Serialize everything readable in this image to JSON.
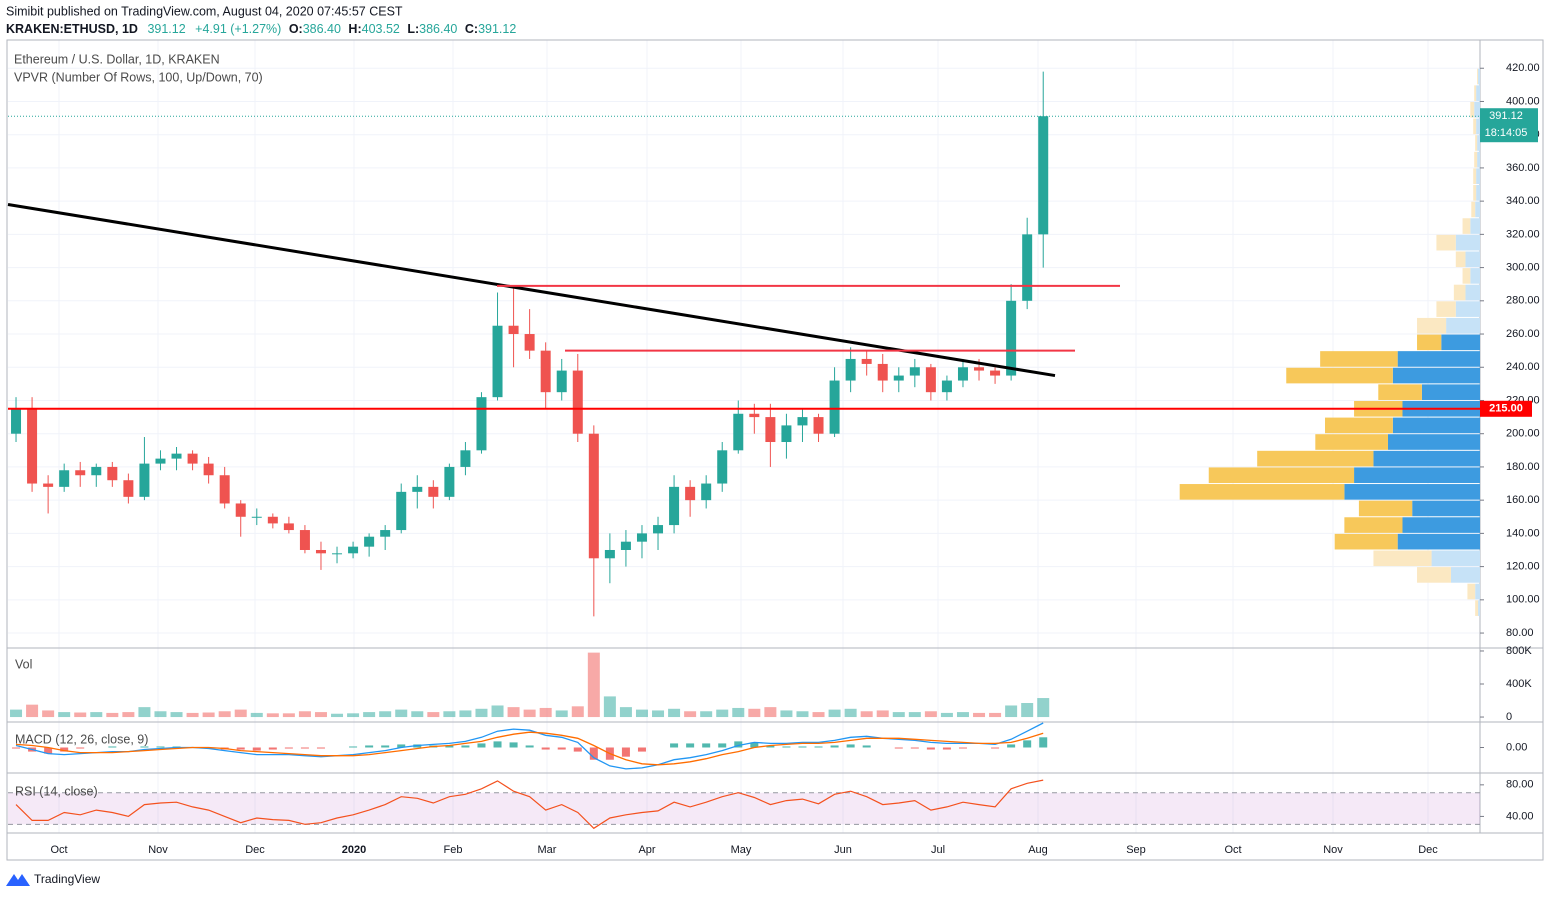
{
  "header": {
    "publisher": "Simibit published on TradingView.com, August 04, 2020 07:45:57 CEST",
    "symbol": "KRAKEN:ETHUSD, 1D",
    "last": "391.12",
    "change": "+4.91 (+1.27%)",
    "ohlc": [
      {
        "key": "O:",
        "value": "386.40"
      },
      {
        "key": "H:",
        "value": "403.52"
      },
      {
        "key": "L:",
        "value": "386.40"
      },
      {
        "key": "C:",
        "value": "391.12"
      }
    ]
  },
  "chart_data": [
    {
      "type": "candlestick",
      "title": "Ethereum / U.S. Dollar, 1D, KRAKEN",
      "indicator": "VPVR (Number Of Rows, 100, Up/Down, 70)",
      "x_labels": [
        "Oct",
        "Nov",
        "Dec",
        "2020",
        "Feb",
        "Mar",
        "Apr",
        "May",
        "Jun",
        "Jul",
        "Aug",
        "Sep",
        "Oct",
        "Nov",
        "Dec"
      ],
      "open": [
        200,
        215,
        170,
        168,
        178,
        175,
        180,
        172,
        162,
        182,
        185,
        188,
        182,
        175,
        158,
        150,
        150,
        146,
        142,
        130,
        128,
        128,
        132,
        138,
        142,
        165,
        168,
        162,
        180,
        190,
        222,
        265,
        260,
        250,
        225,
        238,
        200,
        125,
        130,
        135,
        140,
        145,
        168,
        160,
        170,
        190,
        212,
        210,
        195,
        205,
        210,
        200,
        232,
        245,
        242,
        232,
        235,
        240,
        225,
        232,
        240,
        238,
        235,
        280,
        320
      ],
      "high": [
        222,
        222,
        175,
        182,
        183,
        182,
        183,
        176,
        198,
        190,
        192,
        190,
        186,
        180,
        160,
        155,
        152,
        150,
        145,
        135,
        132,
        135,
        140,
        145,
        170,
        175,
        172,
        182,
        195,
        225,
        285,
        288,
        275,
        255,
        245,
        248,
        205,
        140,
        142,
        145,
        150,
        175,
        172,
        175,
        195,
        220,
        218,
        218,
        212,
        215,
        212,
        240,
        252,
        250,
        248,
        240,
        245,
        242,
        235,
        245,
        245,
        240,
        290,
        330,
        418
      ],
      "low": [
        195,
        165,
        152,
        165,
        168,
        168,
        168,
        158,
        160,
        178,
        178,
        178,
        170,
        155,
        138,
        145,
        143,
        140,
        128,
        118,
        122,
        125,
        126,
        130,
        140,
        155,
        155,
        160,
        175,
        188,
        220,
        240,
        245,
        215,
        220,
        195,
        90,
        110,
        120,
        125,
        130,
        140,
        150,
        155,
        165,
        188,
        200,
        180,
        185,
        195,
        195,
        198,
        225,
        235,
        225,
        225,
        228,
        220,
        220,
        228,
        232,
        230,
        232,
        275,
        300
      ],
      "close": [
        215,
        170,
        168,
        178,
        175,
        180,
        172,
        162,
        182,
        185,
        188,
        182,
        175,
        158,
        150,
        150,
        146,
        142,
        130,
        128,
        128,
        132,
        138,
        142,
        165,
        168,
        162,
        180,
        190,
        222,
        265,
        260,
        250,
        225,
        238,
        200,
        125,
        130,
        135,
        140,
        145,
        168,
        160,
        170,
        190,
        212,
        210,
        195,
        205,
        210,
        200,
        232,
        245,
        242,
        232,
        235,
        240,
        225,
        232,
        240,
        238,
        235,
        280,
        320,
        391.12
      ],
      "up_color": "#26a69a",
      "down_color": "#ef5350",
      "ylim": [
        71,
        437
      ],
      "yticks": [
        {
          "value": 80,
          "label": "80.00"
        },
        {
          "value": 100,
          "label": "100.00"
        },
        {
          "value": 120,
          "label": "120.00"
        },
        {
          "value": 140,
          "label": "140.00"
        },
        {
          "value": 160,
          "label": "160.00"
        },
        {
          "value": 180,
          "label": "180.00"
        },
        {
          "value": 200,
          "label": "200.00"
        },
        {
          "value": 220,
          "label": "220.00"
        },
        {
          "value": 240,
          "label": "240.00"
        },
        {
          "value": 260,
          "label": "260.00"
        },
        {
          "value": 280,
          "label": "280.00"
        },
        {
          "value": 300,
          "label": "300.00"
        },
        {
          "value": 320,
          "label": "320.00"
        },
        {
          "value": 340,
          "label": "340.00"
        },
        {
          "value": 360,
          "label": "360.00"
        },
        {
          "value": 380,
          "label": "380.00"
        },
        {
          "value": 400,
          "label": "400.00"
        },
        {
          "value": 420,
          "label": "420.00"
        }
      ],
      "grid": true,
      "countdown": "18:14:05",
      "trendline": {
        "values": [
          338,
          235
        ],
        "color": "#000000"
      },
      "hlines": [
        {
          "value": 289,
          "color": "#f23645"
        },
        {
          "value": 250,
          "color": "#f23645"
        },
        {
          "value": 215,
          "label": "215.00",
          "color": "#ff0000"
        }
      ],
      "volume_profile": {
        "prices": [
          95,
          105,
          115,
          125,
          135,
          145,
          155,
          165,
          175,
          185,
          195,
          205,
          215,
          225,
          235,
          245,
          255,
          265,
          275,
          285,
          295,
          305,
          315,
          325,
          335,
          345,
          355,
          365,
          375,
          385,
          395,
          405,
          415
        ],
        "up": [
          2,
          5,
          30,
          50,
          85,
          80,
          70,
          140,
          130,
          110,
          95,
          90,
          80,
          60,
          90,
          85,
          40,
          35,
          25,
          15,
          10,
          15,
          25,
          10,
          5,
          4,
          4,
          3,
          3,
          4,
          6,
          4,
          2
        ],
        "down": [
          3,
          8,
          35,
          60,
          65,
          60,
          55,
          170,
          150,
          120,
          75,
          70,
          50,
          45,
          110,
          80,
          25,
          30,
          20,
          12,
          8,
          10,
          20,
          8,
          4,
          3,
          3,
          3,
          2,
          3,
          4,
          2,
          1
        ],
        "xlim": [
          0,
          320
        ],
        "value_area": [
          130,
          260
        ],
        "up_color": "#3d9be0",
        "down_color": "#f7c85a",
        "up_color_outside": "#c6e2f7",
        "down_color_outside": "#fbe8c2"
      }
    },
    {
      "type": "bar",
      "title": "Vol",
      "values": [
        90000,
        150000,
        80000,
        60000,
        55000,
        60000,
        50000,
        60000,
        120000,
        70000,
        60000,
        50000,
        55000,
        70000,
        90000,
        50000,
        45000,
        45000,
        70000,
        60000,
        40000,
        45000,
        60000,
        70000,
        90000,
        70000,
        60000,
        70000,
        80000,
        100000,
        140000,
        120000,
        90000,
        110000,
        80000,
        130000,
        780000,
        250000,
        120000,
        90000,
        80000,
        100000,
        70000,
        70000,
        90000,
        110000,
        100000,
        120000,
        80000,
        70000,
        60000,
        90000,
        100000,
        70000,
        80000,
        60000,
        60000,
        70000,
        50000,
        60000,
        50000,
        50000,
        140000,
        170000,
        230000
      ],
      "ylim": [
        -60000,
        836000
      ],
      "yticks": [
        0,
        {
          "value": 400000,
          "label": "400K"
        },
        {
          "value": 800000,
          "label": "800K"
        }
      ]
    },
    {
      "type": "macd",
      "title": "MACD (12, 26, close, 9)",
      "macd": [
        2,
        -2,
        -6,
        -7,
        -6,
        -5,
        -4,
        -4,
        -2,
        -1,
        0,
        0,
        -1,
        -3,
        -5,
        -7,
        -7,
        -7,
        -8,
        -9,
        -8,
        -7,
        -5,
        -3,
        0,
        2,
        3,
        4,
        6,
        10,
        16,
        18,
        17,
        12,
        10,
        5,
        -10,
        -18,
        -21,
        -20,
        -17,
        -12,
        -10,
        -7,
        -3,
        2,
        5,
        4,
        4,
        5,
        5,
        7,
        10,
        11,
        9,
        8,
        7,
        5,
        4,
        4,
        4,
        3,
        8,
        16,
        24
      ],
      "signal": [
        3,
        2,
        0,
        -3,
        -5,
        -5,
        -5,
        -4,
        -3,
        -2,
        -1,
        0,
        0,
        -1,
        -3,
        -4,
        -5,
        -6,
        -7,
        -8,
        -8,
        -8,
        -7,
        -5,
        -3,
        -1,
        1,
        2,
        4,
        6,
        10,
        13,
        15,
        14,
        12,
        9,
        2,
        -6,
        -12,
        -16,
        -17,
        -16,
        -14,
        -11,
        -7,
        -4,
        0,
        2,
        3,
        4,
        4,
        5,
        7,
        9,
        9,
        9,
        8,
        7,
        6,
        5,
        4,
        4,
        5,
        9,
        14
      ],
      "histogram": [
        -1,
        -4,
        -6,
        -4,
        -1,
        0,
        1,
        0,
        1,
        1,
        1,
        0,
        -1,
        -2,
        -2,
        -3,
        -2,
        -1,
        -1,
        -1,
        0,
        1,
        2,
        2,
        3,
        3,
        2,
        2,
        2,
        4,
        6,
        5,
        2,
        -2,
        -2,
        -4,
        -12,
        -12,
        -9,
        -4,
        0,
        4,
        4,
        4,
        4,
        6,
        5,
        2,
        1,
        1,
        1,
        2,
        3,
        2,
        0,
        -1,
        -1,
        -2,
        -2,
        -1,
        0,
        -1,
        3,
        7,
        10
      ],
      "macd_color": "#2196f3",
      "signal_color": "#ff6d00",
      "hist_up_color": "#26a69a",
      "hist_down_color": "#ef5350",
      "ylim": [
        -25,
        25
      ],
      "yticks": [
        {
          "value": 0,
          "label": "0.00"
        }
      ]
    },
    {
      "type": "line",
      "title": "RSI (14, close)",
      "values": [
        55,
        35,
        35,
        45,
        42,
        48,
        45,
        40,
        55,
        57,
        58,
        52,
        48,
        40,
        32,
        38,
        36,
        35,
        30,
        32,
        38,
        42,
        48,
        55,
        65,
        63,
        57,
        65,
        68,
        75,
        85,
        72,
        65,
        48,
        55,
        45,
        25,
        38,
        42,
        45,
        47,
        58,
        52,
        58,
        65,
        70,
        64,
        55,
        60,
        62,
        56,
        68,
        72,
        65,
        55,
        57,
        60,
        48,
        52,
        58,
        55,
        52,
        75,
        82,
        86
      ],
      "color": "#f4511e",
      "band": [
        30,
        70
      ],
      "band_color": "#9c27b0",
      "ylim": [
        19,
        95
      ],
      "yticks": [
        {
          "value": 40,
          "label": "40.00"
        },
        {
          "value": 80,
          "label": "80.00"
        }
      ]
    }
  ],
  "footer": {
    "brand": "TradingView"
  }
}
